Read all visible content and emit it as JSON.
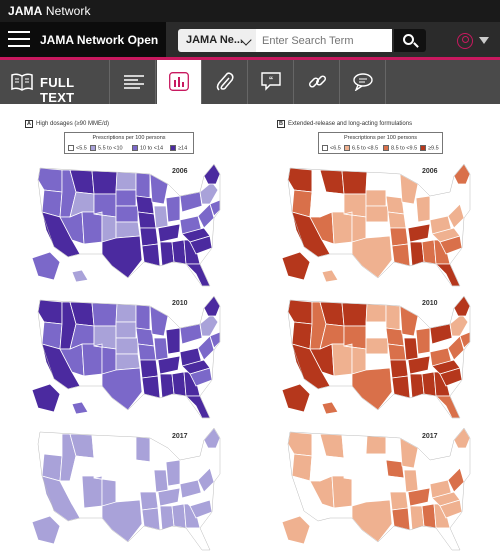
{
  "topbar": {
    "brand_bold": "JAMA",
    "brand_rest": " Network"
  },
  "navbar": {
    "menu_title": "JAMA Network Open",
    "search_select": "JAMA Ne...",
    "search_placeholder": "Enter Search Term"
  },
  "tabs": {
    "full_text": "FULL TEXT"
  },
  "figure": {
    "panelA": {
      "letter": "A",
      "title": "High dosages (≥90 MME/d)",
      "legend_title": "Prescriptions per 100 persons",
      "legend": [
        "<5.5",
        "5.5 to <10",
        "10 to <14",
        "≥14"
      ],
      "colors": [
        "#ffffff",
        "#a9a2d9",
        "#7b68c9",
        "#4b2a9f"
      ]
    },
    "panelB": {
      "letter": "B",
      "title": "Extended-release and long-acting formulations",
      "legend_title": "Prescriptions per 100 persons",
      "legend": [
        "<6.5",
        "6.5 to <8.5",
        "8.5 to <9.5",
        "≥9.5"
      ],
      "colors": [
        "#ffffff",
        "#efb190",
        "#d9704a",
        "#b5371c"
      ]
    },
    "years": [
      "2006",
      "2010",
      "2017"
    ]
  }
}
